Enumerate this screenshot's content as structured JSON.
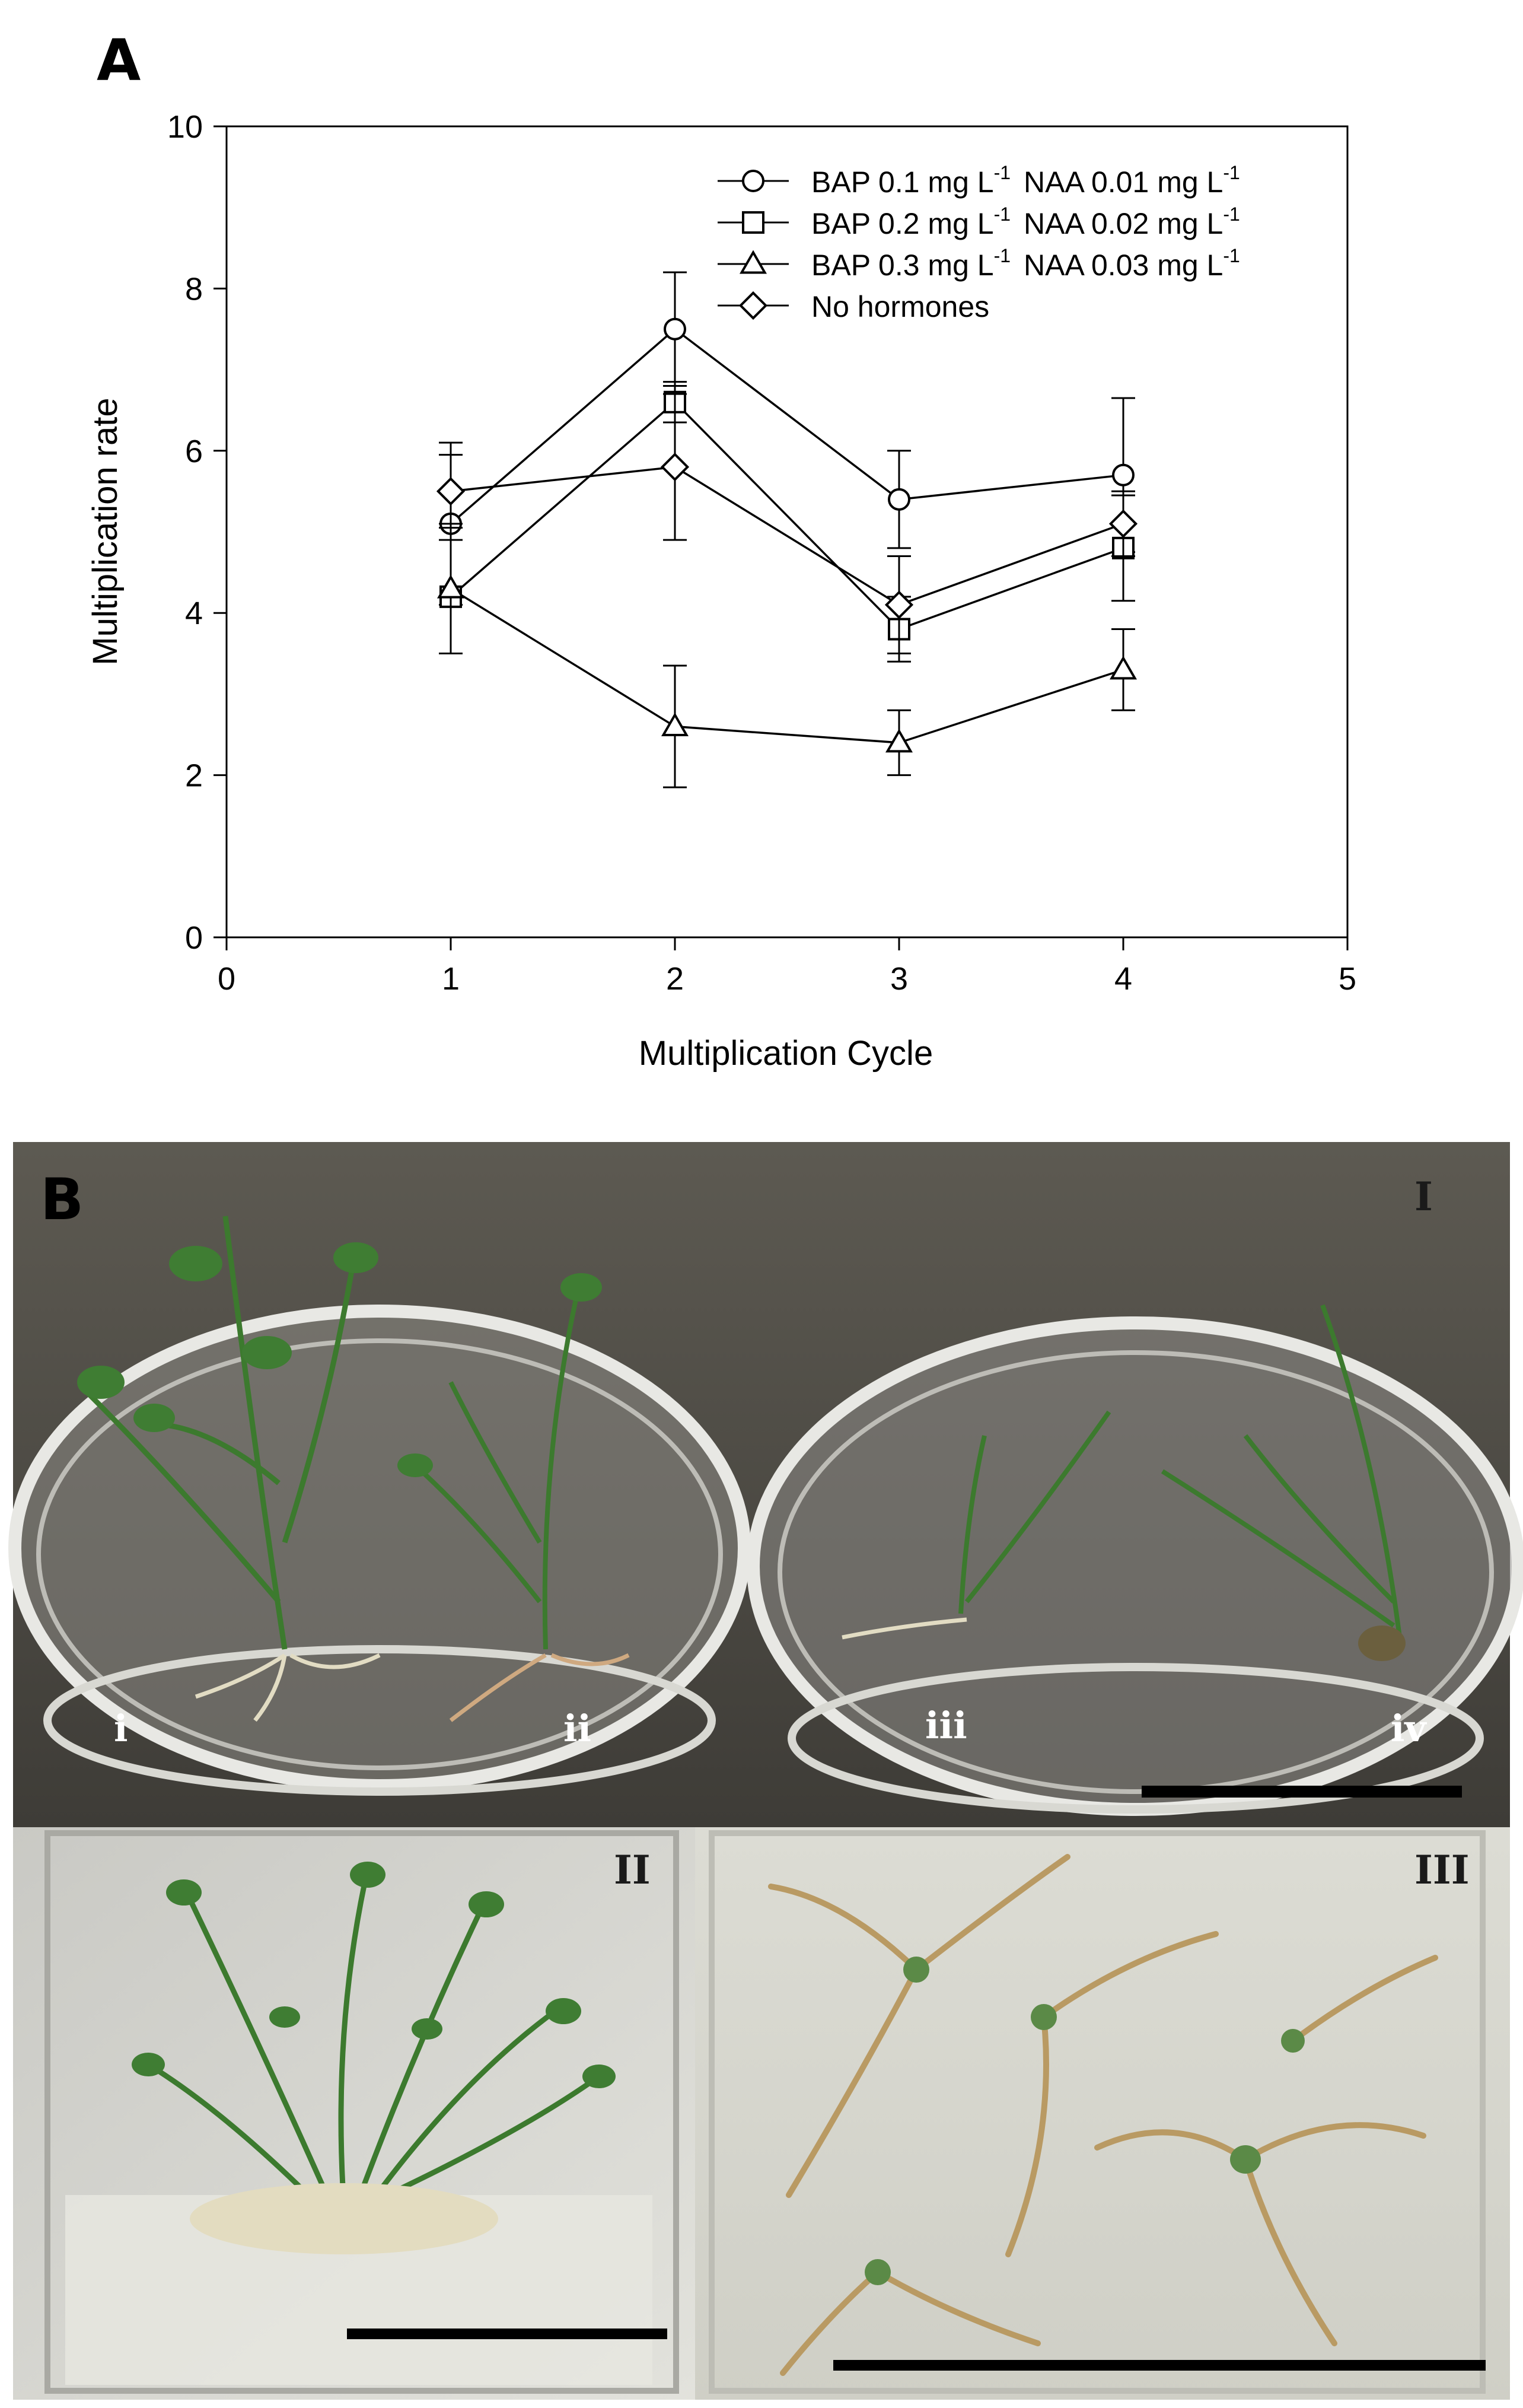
{
  "panel_a": {
    "letter": "A"
  },
  "panel_b": {
    "letter": "B",
    "photo_I": {
      "label": "I",
      "sample_labels": [
        "i",
        "ii",
        "iii",
        "iv"
      ]
    },
    "photo_II": {
      "label": "II"
    },
    "photo_III": {
      "label": "III"
    }
  },
  "chart_data": {
    "type": "line",
    "title": "",
    "xlabel": "Multiplication Cycle",
    "ylabel": "Multiplication rate",
    "xlim": [
      0,
      5
    ],
    "ylim": [
      0,
      10
    ],
    "x_ticks": [
      "0",
      "1",
      "2",
      "3",
      "4",
      "5"
    ],
    "y_ticks": [
      "0",
      "2",
      "4",
      "6",
      "8",
      "10"
    ],
    "grid": false,
    "legend_position": "top-right",
    "x": [
      1,
      2,
      3,
      4
    ],
    "series": [
      {
        "name_parts": [
          "BAP 0.1 mg L",
          "-1",
          "NAA 0.01 mg L",
          "-1"
        ],
        "marker": "circle",
        "values": [
          5.1,
          7.5,
          5.4,
          5.7
        ],
        "err": [
          1.0,
          0.7,
          0.6,
          0.95
        ]
      },
      {
        "name_parts": [
          "BAP 0.2 mg L",
          "-1",
          "NAA 0.02 mg L",
          "-1"
        ],
        "marker": "square",
        "values": [
          4.2,
          6.6,
          3.8,
          4.8
        ],
        "err": [
          0.7,
          0.25,
          0.4,
          0.65
        ]
      },
      {
        "name_parts": [
          "BAP 0.3 mg L",
          "-1",
          "NAA 0.03 mg L",
          "-1"
        ],
        "marker": "triangle",
        "values": [
          4.3,
          2.6,
          2.4,
          3.3
        ],
        "err": [
          0.8,
          0.75,
          0.4,
          0.5
        ]
      },
      {
        "name_parts": [
          "No hormones"
        ],
        "marker": "diamond",
        "values": [
          5.5,
          5.8,
          4.1,
          5.1
        ],
        "err": [
          0.45,
          0.9,
          0.6,
          0.4
        ]
      }
    ],
    "colors": {
      "line": "#000000",
      "marker_fill": "#ffffff"
    }
  }
}
